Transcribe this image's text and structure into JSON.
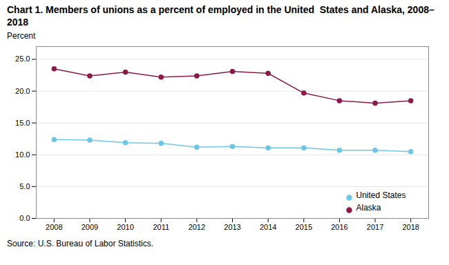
{
  "chart_data": {
    "type": "line",
    "title": "Chart 1. Members of unions as a percent of employed in the United  States and Alaska, 2008–2018",
    "ylabel": "Percent",
    "source": "Source: U.S. Bureau of Labor Statistics.",
    "x": [
      2008,
      2009,
      2010,
      2011,
      2012,
      2013,
      2014,
      2015,
      2016,
      2017,
      2018
    ],
    "series": [
      {
        "name": "United States",
        "color": "#6EC6E6",
        "marker": "circle",
        "values": [
          12.4,
          12.3,
          11.9,
          11.8,
          11.2,
          11.3,
          11.1,
          11.1,
          10.7,
          10.7,
          10.5
        ]
      },
      {
        "name": "Alaska",
        "color": "#8B1A4A",
        "marker": "circle",
        "values": [
          23.5,
          22.4,
          23.0,
          22.2,
          22.4,
          23.1,
          22.8,
          19.7,
          18.5,
          18.1,
          18.5
        ]
      }
    ],
    "xlim": [
      2007.5,
      2018.5
    ],
    "xticks": [
      2008,
      2009,
      2010,
      2011,
      2012,
      2013,
      2014,
      2015,
      2016,
      2017,
      2018
    ],
    "ylim": [
      0,
      27
    ],
    "yticks": [
      {
        "value": 0.0,
        "label": "0.0"
      },
      {
        "value": 5.0,
        "label": "5.0"
      },
      {
        "value": 10.0,
        "label": "10.0"
      },
      {
        "value": 15.0,
        "label": "15.0"
      },
      {
        "value": 20.0,
        "label": "20.0"
      },
      {
        "value": 25.0,
        "label": "25.0"
      }
    ],
    "grid": true,
    "legend": "lower right"
  }
}
